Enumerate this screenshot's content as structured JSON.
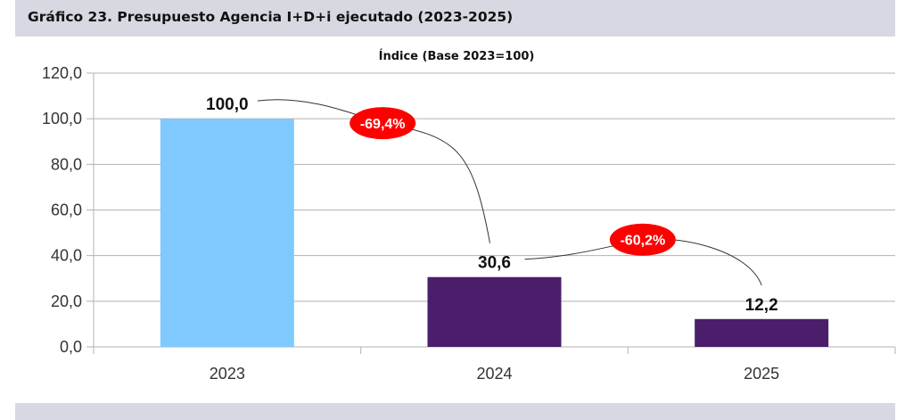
{
  "figure": {
    "title": "Gráfico 23. Presupuesto Agencia I+D+i ejecutado (2023-2025)"
  },
  "chart_data": {
    "type": "bar",
    "title": "Índice (Base 2023=100)",
    "xlabel": "",
    "ylabel": "",
    "categories": [
      "2023",
      "2024",
      "2025"
    ],
    "values": [
      100.0,
      30.6,
      12.2
    ],
    "data_labels": [
      "100,0",
      "30,6",
      "12,2"
    ],
    "bar_colors": [
      "#7fc9ff",
      "#4b1e6b",
      "#4b1e6b"
    ],
    "ylim": [
      0,
      120
    ],
    "yticks": [
      0,
      20,
      40,
      60,
      80,
      100,
      120
    ],
    "ytick_labels": [
      "0,0",
      "20,0",
      "40,0",
      "60,0",
      "80,0",
      "100,0",
      "120,0"
    ],
    "grid": true,
    "legend": "none",
    "annotations": [
      {
        "text": "-69,4%",
        "from": "2023",
        "to": "2024",
        "color": "#ff0000"
      },
      {
        "text": "-60,2%",
        "from": "2024",
        "to": "2025",
        "color": "#ff0000"
      }
    ]
  }
}
